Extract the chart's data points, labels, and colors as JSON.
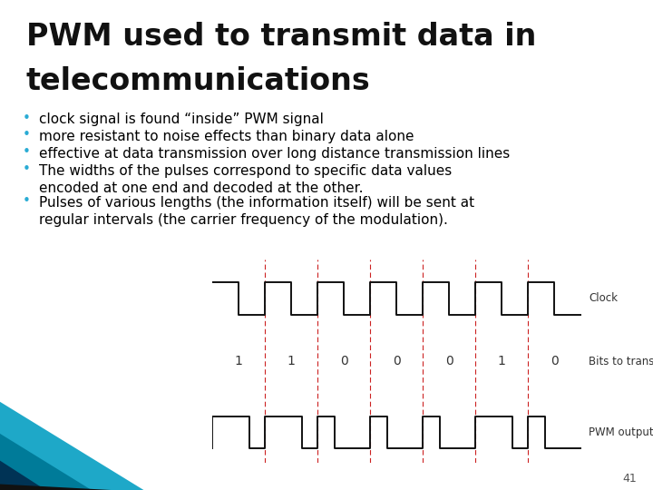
{
  "title_line1": "PWM used to transmit data in",
  "title_line2": "telecommunications",
  "title_fontsize": 24,
  "bullet_color": "#29ABD4",
  "bullet_text_color": "#000000",
  "bullets": [
    "clock signal is found “inside” PWM signal",
    "more resistant to noise effects than binary data alone",
    "effective at data transmission over long distance transmission lines",
    "The widths of the pulses correspond to specific data values\nencoded at one end and decoded at the other.",
    "Pulses of various lengths (the information itself) will be sent at\nregular intervals (the carrier frequency of the modulation)."
  ],
  "bullet_fontsize": 11,
  "diagram_bg": "#E8EEF6",
  "diagram_border": "#AAAAAA",
  "dashed_line_color": "#CC2222",
  "signal_color": "#111111",
  "label_color": "#333333",
  "bits": [
    1,
    1,
    0,
    0,
    0,
    1,
    0
  ],
  "slide_number": "41",
  "bg_color": "#FFFFFF",
  "corner_color1": "#007B99",
  "corner_color2": "#004466",
  "corner_color3": "#001F33"
}
